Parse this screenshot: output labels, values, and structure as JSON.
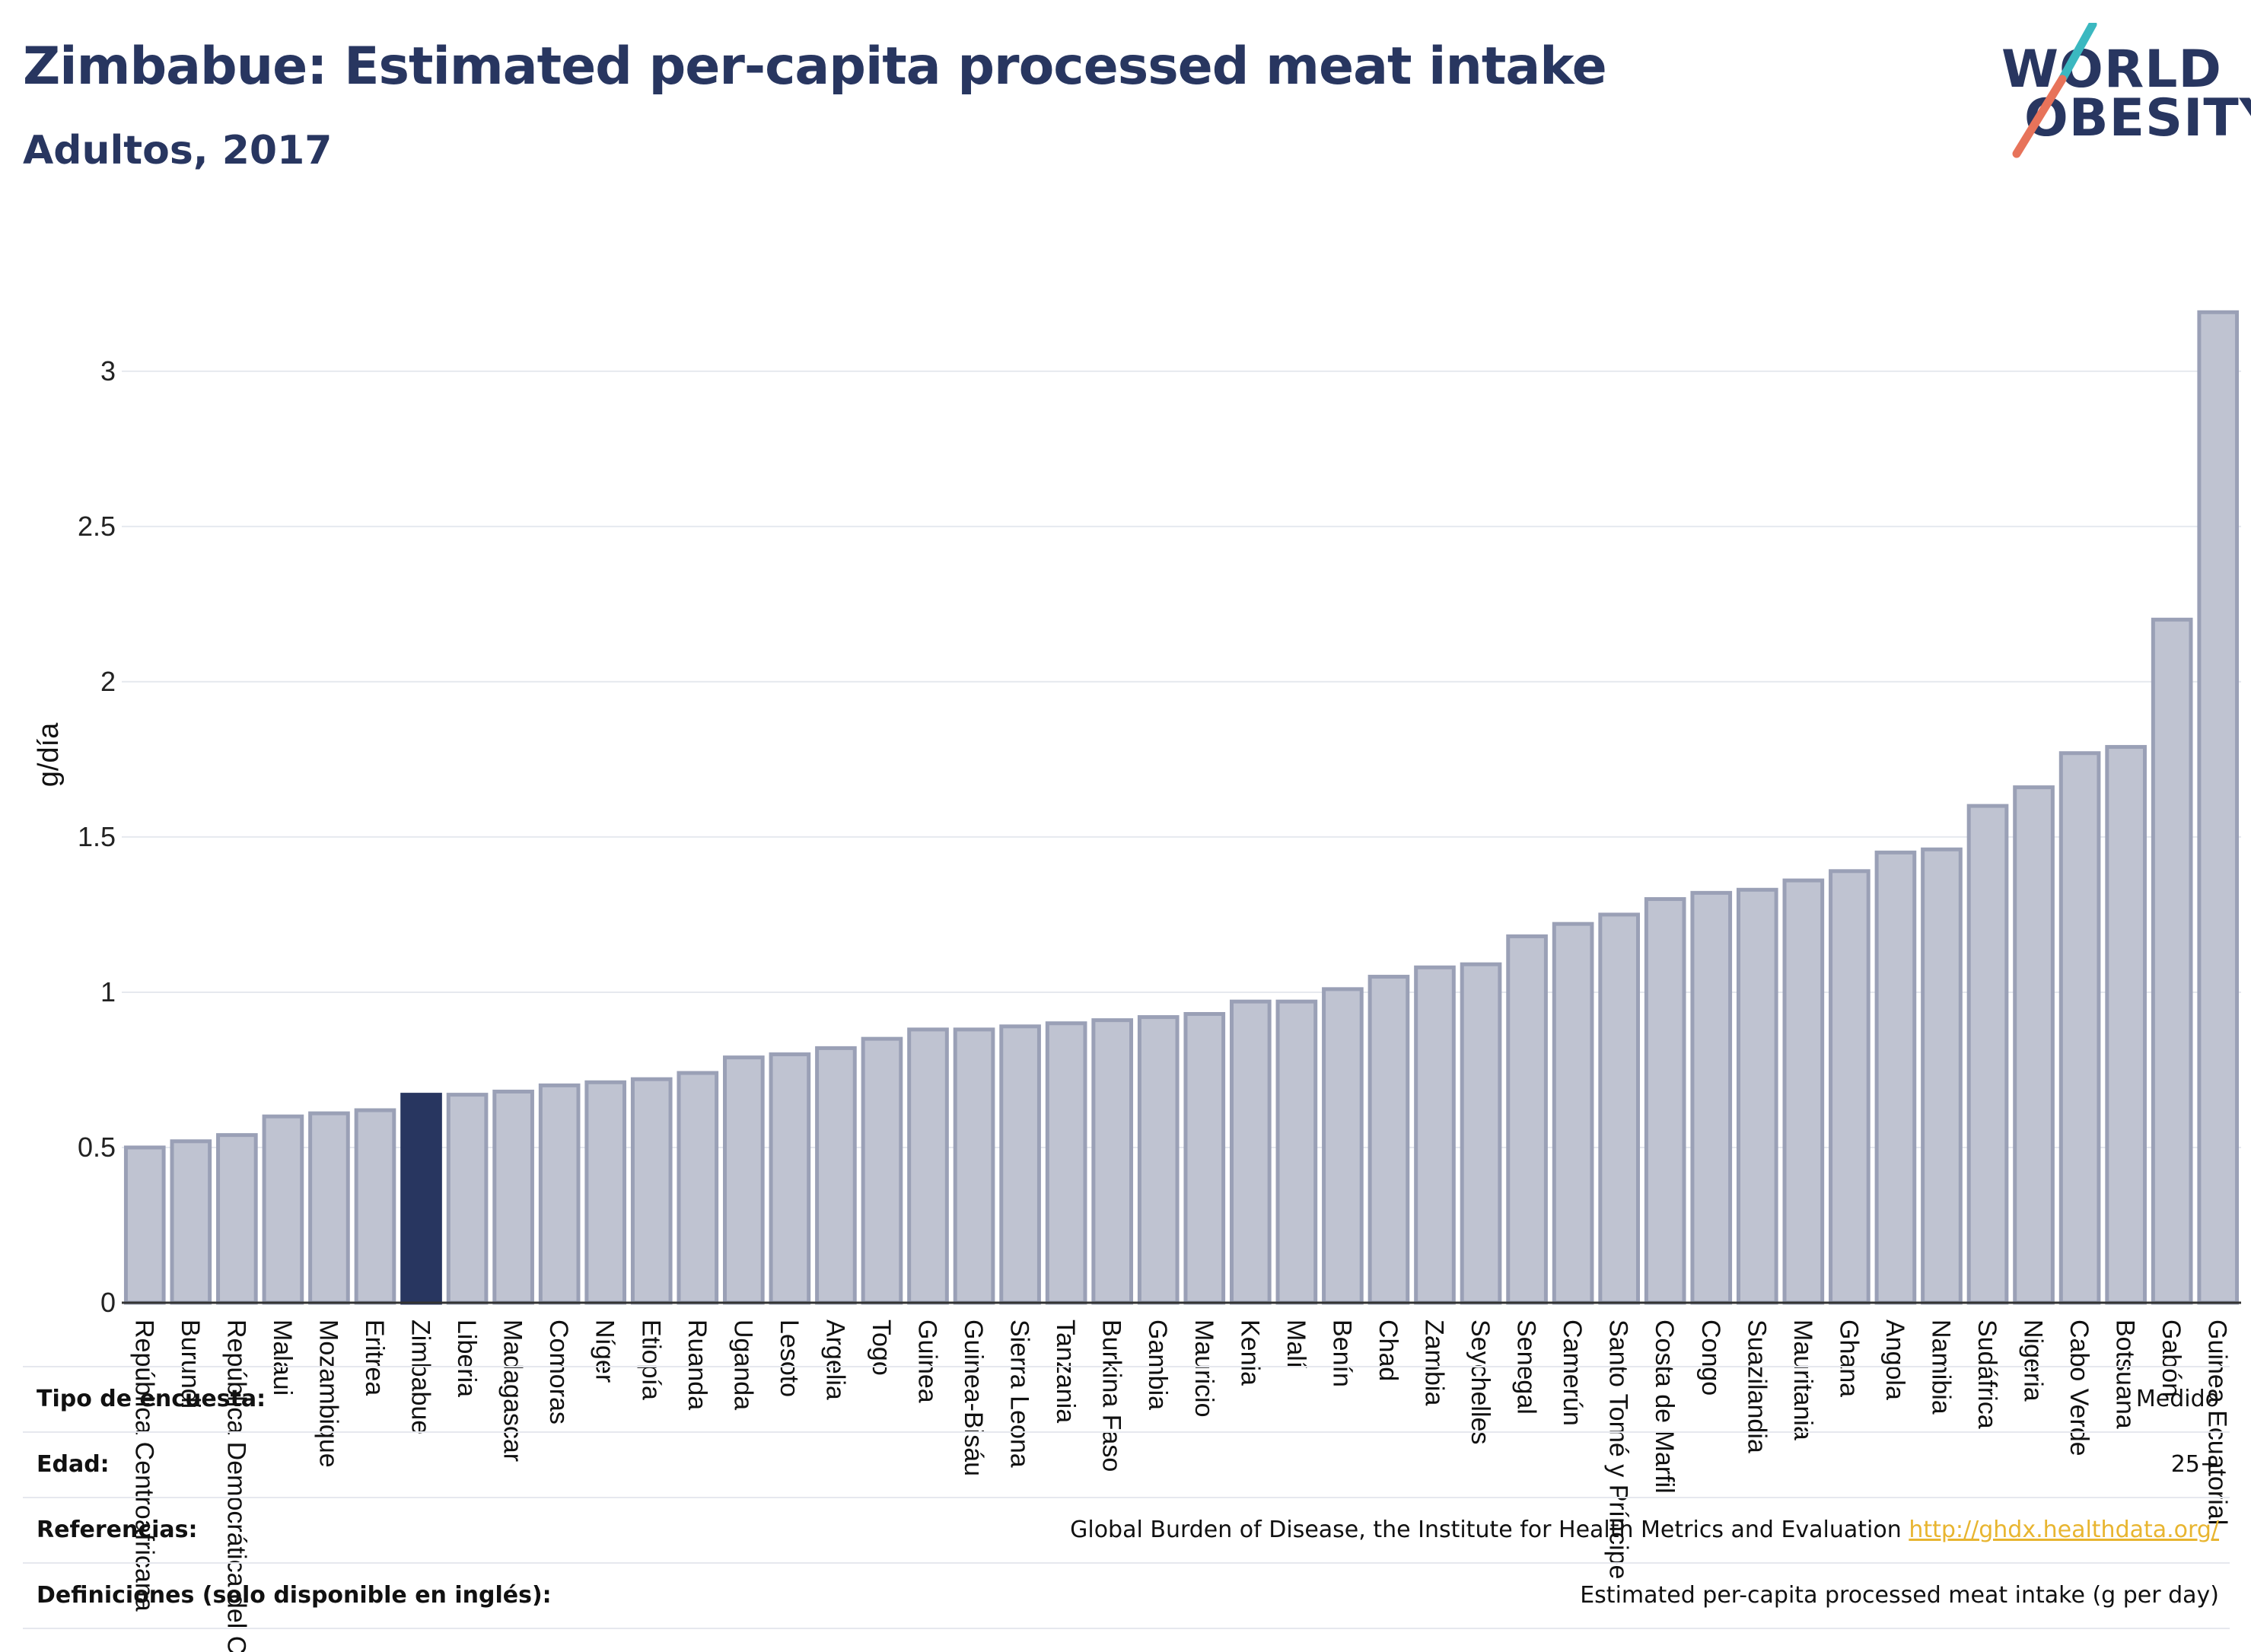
{
  "header": {
    "title": "Zimbabue: Estimated per-capita processed meat intake",
    "subtitle": "Adultos, 2017"
  },
  "logo": {
    "line1": "WORLD",
    "line2": "OBESITY"
  },
  "colors": {
    "highlight": "#283660",
    "bar": "#bfc3d1",
    "bar_stroke": "#9aa0b6",
    "grid": "#e6e9ef",
    "link": "#e8b530"
  },
  "chart_data": {
    "type": "bar",
    "ylabel": "g/día",
    "ylim": [
      0,
      3.35
    ],
    "yticks": [
      0,
      0.5,
      1,
      1.5,
      2,
      2.5,
      3
    ],
    "ytick_labels": [
      "0",
      "0.5",
      "1",
      "1.5",
      "2",
      "2.5",
      "3"
    ],
    "grid": true,
    "highlight": "Zimbabue",
    "categories": [
      "República Centroafricana",
      "Burundi",
      "República Democrática del Congo",
      "Malaui",
      "Mozambique",
      "Eritrea",
      "Zimbabue",
      "Liberia",
      "Madagascar",
      "Comoras",
      "Níger",
      "Etiopía",
      "Ruanda",
      "Uganda",
      "Lesoto",
      "Argelia",
      "Togo",
      "Guinea",
      "Guinea-Bisáu",
      "Sierra Leona",
      "Tanzania",
      "Burkina Faso",
      "Gambia",
      "Mauricio",
      "Kenia",
      "Malí",
      "Benín",
      "Chad",
      "Zambia",
      "Seychelles",
      "Senegal",
      "Camerún",
      "Santo Tomé y Príncipe",
      "Costa de Marfil",
      "Congo",
      "Suazilandia",
      "Mauritania",
      "Ghana",
      "Angola",
      "Namibia",
      "Sudáfrica",
      "Nigeria",
      "Cabo Verde",
      "Botsuana",
      "Gabón",
      "Guinea Ecuatorial"
    ],
    "values": [
      0.5,
      0.52,
      0.54,
      0.6,
      0.61,
      0.62,
      0.67,
      0.67,
      0.68,
      0.7,
      0.71,
      0.72,
      0.74,
      0.79,
      0.8,
      0.82,
      0.85,
      0.88,
      0.88,
      0.89,
      0.9,
      0.91,
      0.92,
      0.93,
      0.97,
      0.97,
      1.01,
      1.05,
      1.08,
      1.09,
      1.18,
      1.22,
      1.25,
      1.3,
      1.32,
      1.33,
      1.36,
      1.39,
      1.45,
      1.46,
      1.6,
      1.66,
      1.77,
      1.79,
      2.2,
      3.19
    ]
  },
  "info": {
    "survey_type_label": "Tipo de encuesta:",
    "survey_type_value": "Medido",
    "age_label": "Edad:",
    "age_value": "25+",
    "refs_label": "Referencias:",
    "refs_text": "Global Burden of Disease, the Institute for Health Metrics and Evaluation",
    "refs_link": "http://ghdx.healthdata.org/",
    "defs_label": "Definiciones (solo disponible en inglés):",
    "defs_value": "Estimated per-capita processed meat intake (g per day)"
  }
}
